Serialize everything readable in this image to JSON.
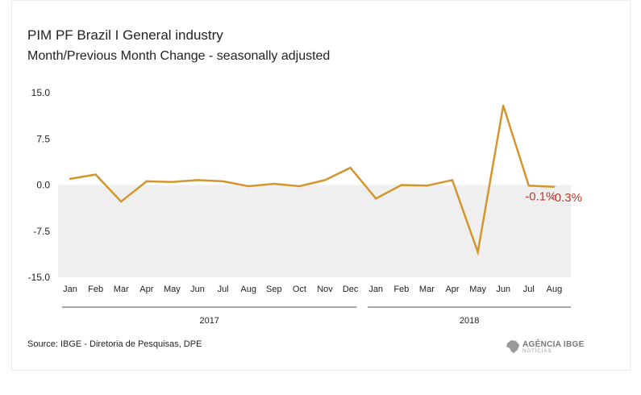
{
  "header": {
    "title": "PIM PF Brazil I General industry",
    "subtitle": "Month/Previous Month Change - seasonally adjusted"
  },
  "footer": {
    "source": "Source: IBGE - Diretoria de Pesquisas, DPE",
    "logo_text": "AGÊNCIA IBGE",
    "logo_sub": "NOTÍCIAS"
  },
  "colors": {
    "line": "#D4962C",
    "negative_band": "#EFEFEF",
    "label": "#C0392B",
    "year_line": "#888888"
  },
  "chart_data": {
    "type": "line",
    "title": "PIM PF Brazil I General industry",
    "subtitle": "Month/Previous Month Change - seasonally adjusted",
    "categories": [
      "Jan",
      "Feb",
      "Mar",
      "Apr",
      "May",
      "Jun",
      "Jul",
      "Aug",
      "Sep",
      "Oct",
      "Nov",
      "Dec",
      "Jan",
      "Feb",
      "Mar",
      "Apr",
      "May",
      "Jun",
      "Jul",
      "Aug"
    ],
    "years": [
      {
        "label": "2017",
        "start": 0,
        "end": 11
      },
      {
        "label": "2018",
        "start": 12,
        "end": 19
      }
    ],
    "values": [
      1.0,
      1.7,
      -2.7,
      0.6,
      0.5,
      0.8,
      0.6,
      -0.2,
      0.2,
      -0.2,
      0.8,
      2.8,
      -2.2,
      0.0,
      -0.1,
      0.8,
      -10.9,
      12.9,
      -0.1,
      -0.3
    ],
    "ylim": [
      -15,
      15
    ],
    "yticks": [
      "15.0",
      "7.5",
      "0.0",
      "-7.5",
      "-15.0"
    ],
    "yticks_values": [
      15,
      7.5,
      0,
      -7.5,
      -15
    ],
    "annotations": [
      {
        "index": 18,
        "text": "-0.1%"
      },
      {
        "index": 19,
        "text": "-0.3%"
      }
    ],
    "grid": false
  }
}
